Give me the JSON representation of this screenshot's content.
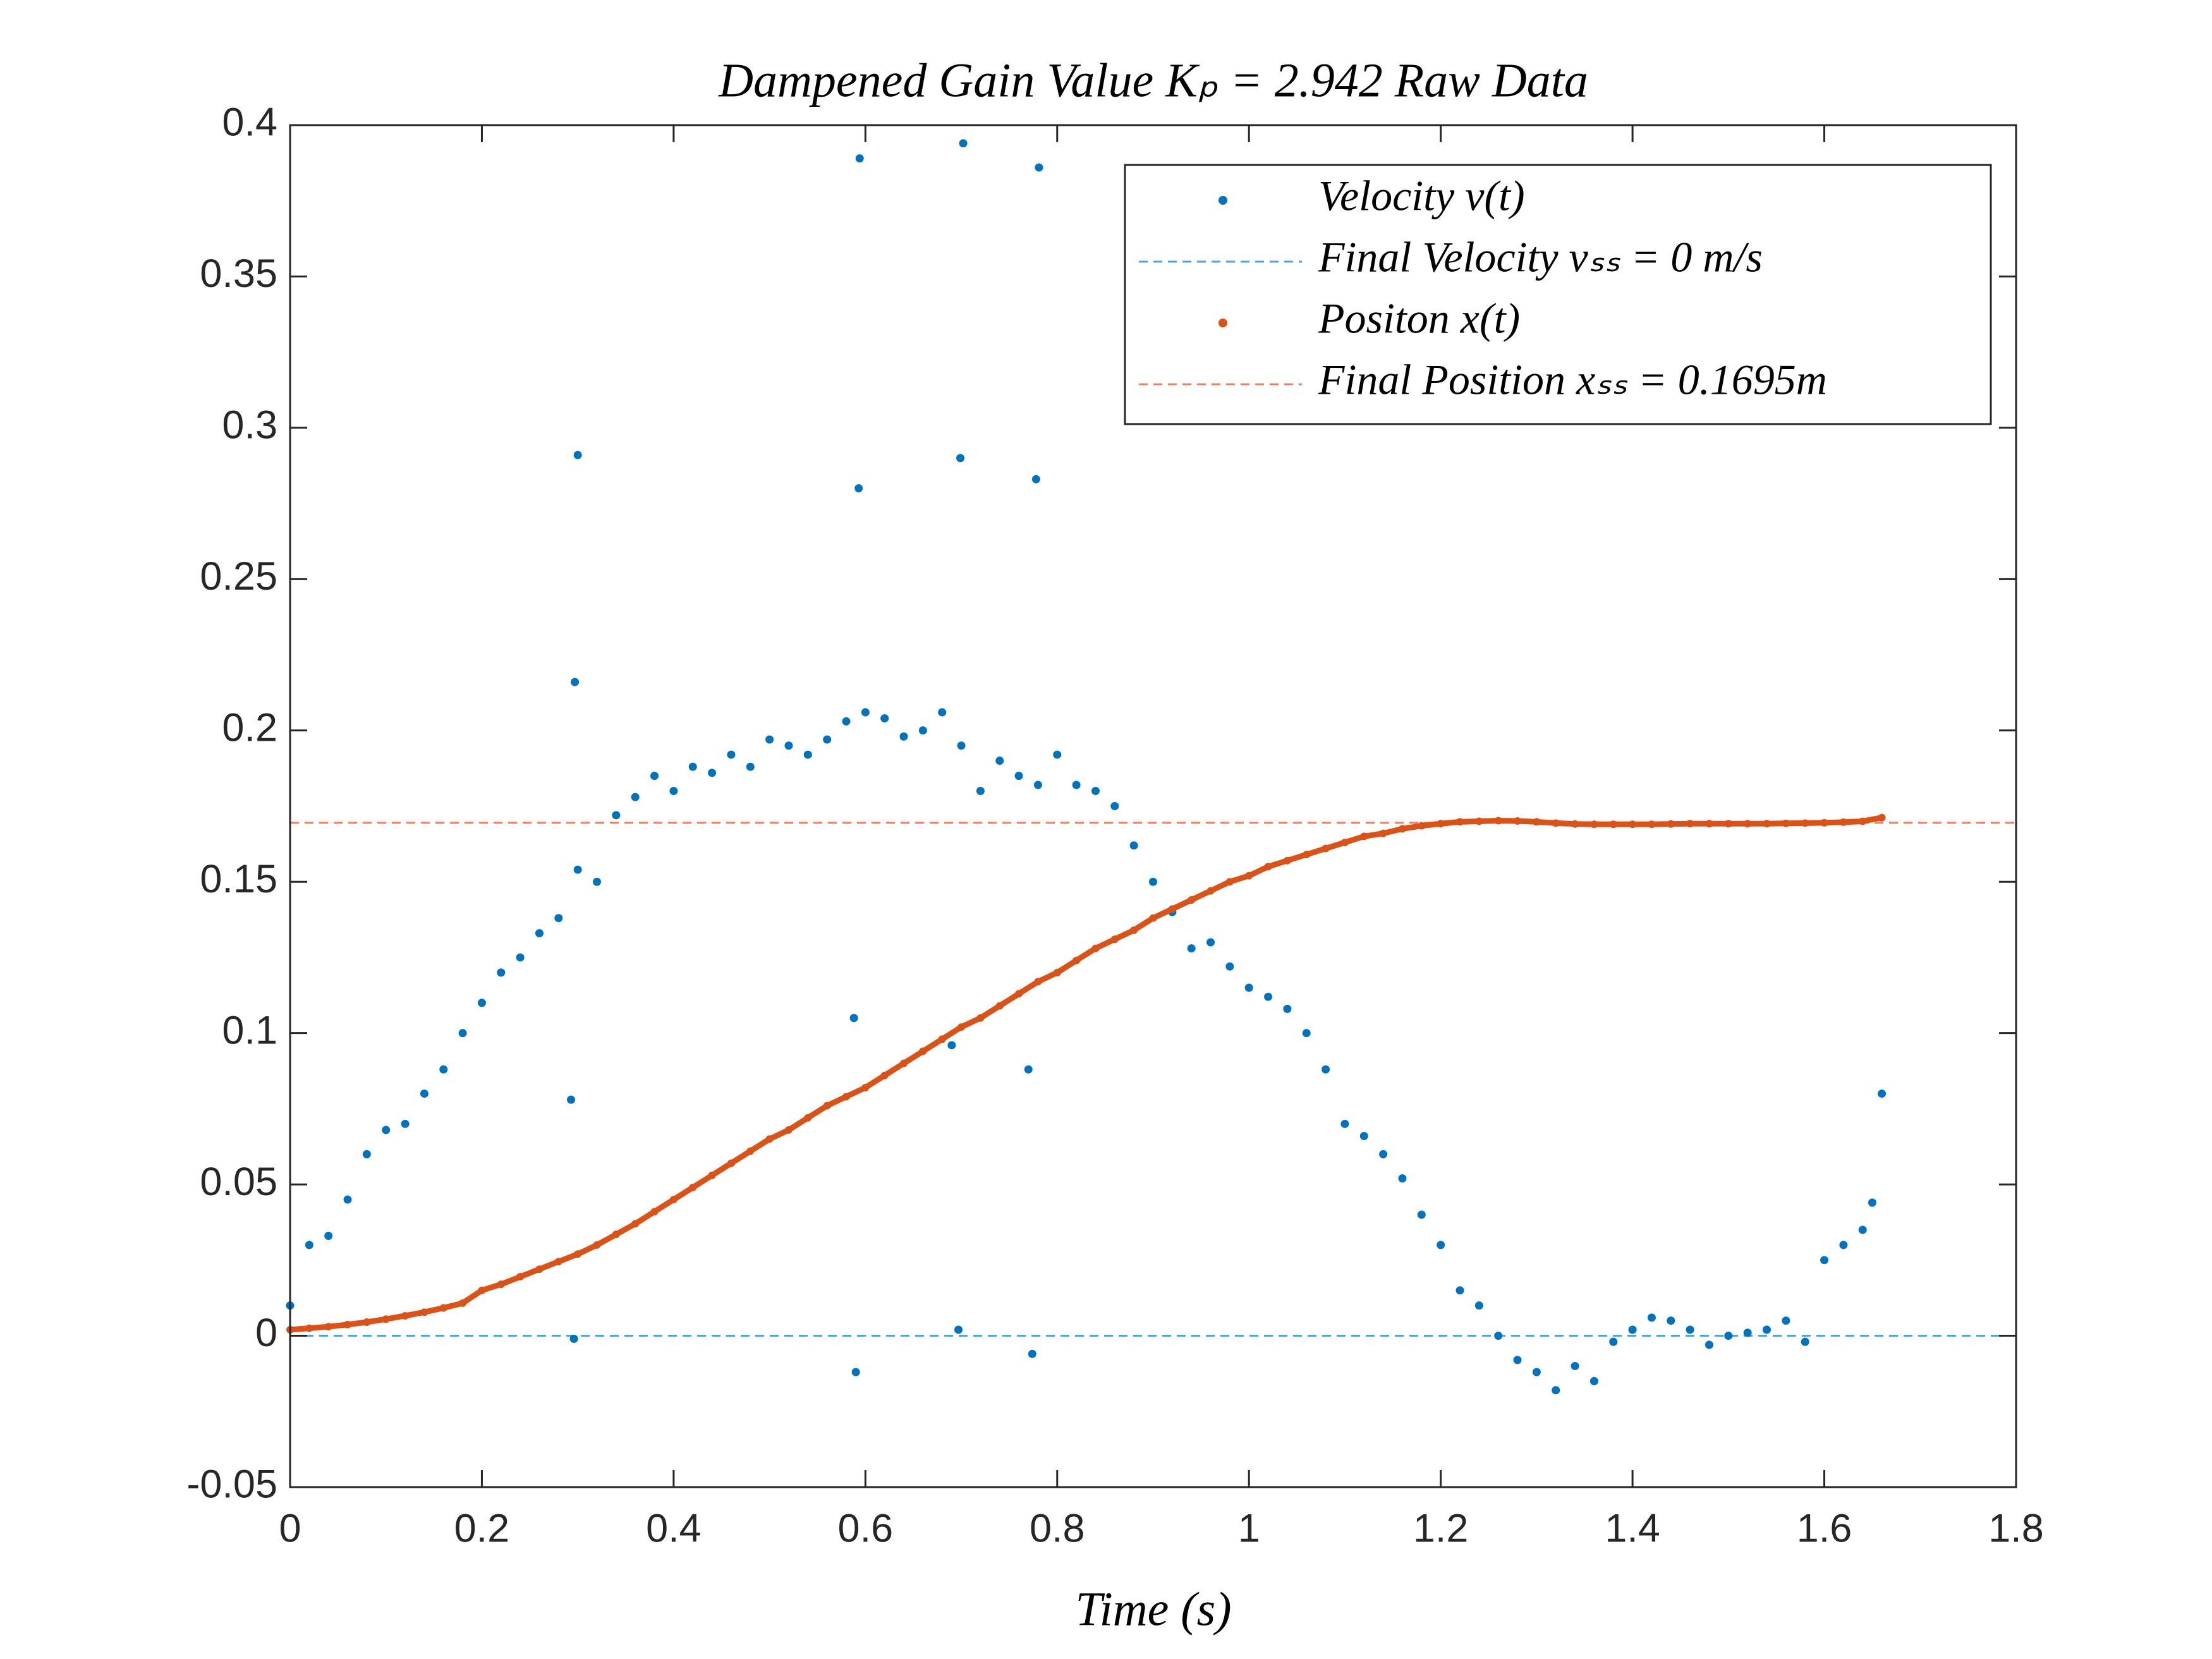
{
  "chart_data": {
    "type": "scatter",
    "title": "Dampened Gain Value Kₚ = 2.942 Raw Data",
    "x_label": "Time (s)",
    "xlim": [
      0,
      1.8
    ],
    "xticks": [
      0,
      0.2,
      0.4,
      0.6,
      0.8,
      1,
      1.2,
      1.4,
      1.6,
      1.8
    ],
    "ylim": [
      -0.05,
      0.4
    ],
    "yticks": [
      -0.05,
      0,
      0.05,
      0.1,
      0.15,
      0.2,
      0.25,
      0.3,
      0.35,
      0.4
    ],
    "grid": false,
    "legend": "northeast",
    "series": [
      {
        "name": "Velocity v(t)",
        "color": "#0072bd",
        "kind": "points",
        "x": [
          0,
          0.02,
          0.04,
          0.06,
          0.08,
          0.1,
          0.12,
          0.14,
          0.16,
          0.18,
          0.2,
          0.22,
          0.24,
          0.26,
          0.28,
          0.3,
          0.32,
          0.34,
          0.36,
          0.38,
          0.4,
          0.42,
          0.44,
          0.46,
          0.48,
          0.5,
          0.52,
          0.54,
          0.56,
          0.58,
          0.6,
          0.62,
          0.64,
          0.66,
          0.68,
          0.7,
          0.72,
          0.74,
          0.76,
          0.78,
          0.8,
          0.82,
          0.84,
          0.86,
          0.88,
          0.9,
          0.92,
          0.94,
          0.96,
          0.98,
          1,
          1.02,
          1.04,
          1.06,
          1.08,
          1.1,
          1.12,
          1.14,
          1.16,
          1.18,
          1.2,
          1.22,
          1.24,
          1.26,
          1.28,
          1.3,
          1.32,
          1.34,
          1.36,
          1.38,
          1.4,
          1.42,
          1.44,
          1.46,
          1.48,
          1.5,
          1.52,
          1.54,
          1.56,
          1.58,
          1.6,
          1.62,
          1.64,
          1.65,
          1.66,
          0.3,
          0.297,
          0.293,
          0.296,
          0.594,
          0.593,
          0.588,
          0.59,
          0.702,
          0.699,
          0.697,
          0.69,
          0.781,
          0.778,
          0.77,
          0.774
        ],
        "values": [
          0.01,
          0.03,
          0.033,
          0.045,
          0.06,
          0.068,
          0.07,
          0.08,
          0.088,
          0.1,
          0.11,
          0.12,
          0.125,
          0.133,
          0.138,
          0.154,
          0.15,
          0.172,
          0.178,
          0.185,
          0.18,
          0.188,
          0.186,
          0.192,
          0.188,
          0.197,
          0.195,
          0.192,
          0.197,
          0.203,
          0.206,
          0.204,
          0.198,
          0.2,
          0.206,
          0.195,
          0.18,
          0.19,
          0.185,
          0.182,
          0.192,
          0.182,
          0.18,
          0.175,
          0.162,
          0.15,
          0.14,
          0.128,
          0.13,
          0.122,
          0.115,
          0.112,
          0.108,
          0.1,
          0.088,
          0.07,
          0.066,
          0.06,
          0.052,
          0.04,
          0.03,
          0.015,
          0.01,
          0,
          -0.008,
          -0.012,
          -0.018,
          -0.01,
          -0.015,
          -0.002,
          0.002,
          0.006,
          0.005,
          0.002,
          -0.003,
          0,
          0.001,
          0.002,
          0.005,
          -0.002,
          0.025,
          0.03,
          0.035,
          0.044,
          0.08,
          0.291,
          0.216,
          0.078,
          -0.001,
          0.389,
          0.28,
          0.105,
          -0.012,
          0.394,
          0.29,
          0.002,
          0.096,
          0.386,
          0.283,
          0.088,
          -0.006
        ]
      },
      {
        "name": "Final Velocity vₛₛ = 0 m/s",
        "color": "#4da6d9",
        "kind": "hline",
        "value": 0
      },
      {
        "name": "Positon x(t)",
        "color": "#d95319",
        "kind": "points",
        "x": [
          0,
          0.02,
          0.04,
          0.06,
          0.08,
          0.1,
          0.12,
          0.14,
          0.16,
          0.18,
          0.2,
          0.22,
          0.24,
          0.26,
          0.28,
          0.3,
          0.32,
          0.34,
          0.36,
          0.38,
          0.4,
          0.42,
          0.44,
          0.46,
          0.48,
          0.5,
          0.52,
          0.54,
          0.56,
          0.58,
          0.6,
          0.62,
          0.64,
          0.66,
          0.68,
          0.7,
          0.72,
          0.74,
          0.76,
          0.78,
          0.8,
          0.82,
          0.84,
          0.86,
          0.88,
          0.9,
          0.92,
          0.94,
          0.96,
          0.98,
          1,
          1.02,
          1.04,
          1.06,
          1.08,
          1.1,
          1.12,
          1.14,
          1.16,
          1.18,
          1.2,
          1.22,
          1.24,
          1.26,
          1.28,
          1.3,
          1.32,
          1.34,
          1.36,
          1.38,
          1.4,
          1.42,
          1.44,
          1.46,
          1.48,
          1.5,
          1.52,
          1.54,
          1.56,
          1.58,
          1.6,
          1.62,
          1.64,
          1.66
        ],
        "values": [
          0.002,
          0.0025,
          0.003,
          0.0037,
          0.0045,
          0.0055,
          0.0066,
          0.0078,
          0.0092,
          0.0108,
          0.015,
          0.017,
          0.0195,
          0.022,
          0.0245,
          0.027,
          0.03,
          0.0335,
          0.037,
          0.041,
          0.045,
          0.049,
          0.053,
          0.057,
          0.061,
          0.065,
          0.068,
          0.072,
          0.076,
          0.079,
          0.082,
          0.086,
          0.09,
          0.094,
          0.098,
          0.102,
          0.105,
          0.109,
          0.113,
          0.117,
          0.12,
          0.124,
          0.128,
          0.131,
          0.134,
          0.138,
          0.141,
          0.144,
          0.147,
          0.15,
          0.152,
          0.155,
          0.157,
          0.159,
          0.161,
          0.163,
          0.165,
          0.166,
          0.1675,
          0.1685,
          0.1692,
          0.1698,
          0.17,
          0.1702,
          0.1701,
          0.1698,
          0.1694,
          0.1691,
          0.169,
          0.169,
          0.169,
          0.169,
          0.1691,
          0.1692,
          0.1692,
          0.1692,
          0.1692,
          0.1692,
          0.1693,
          0.1694,
          0.1695,
          0.1697,
          0.17,
          0.1712
        ]
      },
      {
        "name": "Final Position xₛₛ = 0.1695m",
        "color": "#f08060",
        "kind": "hline",
        "value": 0.1695
      }
    ]
  }
}
